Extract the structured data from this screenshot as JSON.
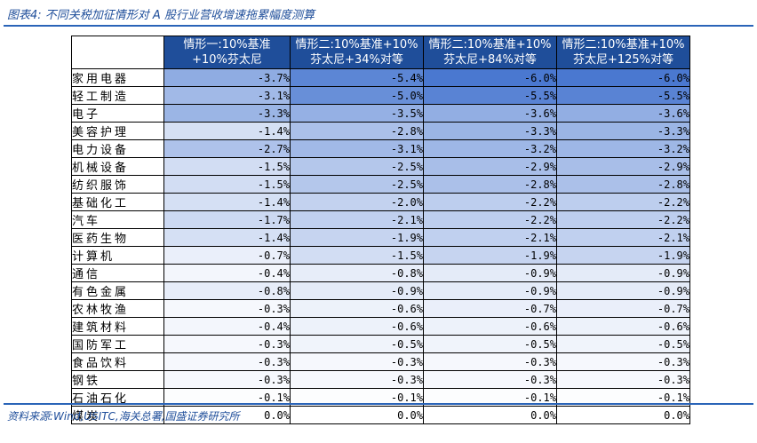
{
  "caption": "图表4:  不同关税加征情形对 A 股行业营收增速拖累幅度测算",
  "source": "资料来源:Wind,USITC,海关总署,国盛证券研究所",
  "columns": [
    {
      "line1": "情形一:10%基准",
      "line2": "+10%芬太尼"
    },
    {
      "line1": "情形二:10%基准+10%",
      "line2": "芬太尼+34%对等"
    },
    {
      "line1": "情形二:10%基准+10%",
      "line2": "芬太尼+84%对等"
    },
    {
      "line1": "情形二:10%基准+10%",
      "line2": "芬太尼+125%对等"
    }
  ],
  "rows": [
    {
      "label": "家用电器",
      "values": [
        "-3.7%",
        "-5.4%",
        "-6.0%",
        "-6.0%"
      ]
    },
    {
      "label": "轻工制造",
      "values": [
        "-3.1%",
        "-5.0%",
        "-5.5%",
        "-5.5%"
      ]
    },
    {
      "label": "电子",
      "values": [
        "-3.3%",
        "-3.5%",
        "-3.6%",
        "-3.6%"
      ]
    },
    {
      "label": "美容护理",
      "values": [
        "-1.4%",
        "-2.8%",
        "-3.3%",
        "-3.3%"
      ]
    },
    {
      "label": "电力设备",
      "values": [
        "-2.7%",
        "-3.1%",
        "-3.2%",
        "-3.2%"
      ]
    },
    {
      "label": "机械设备",
      "values": [
        "-1.5%",
        "-2.5%",
        "-2.9%",
        "-2.9%"
      ]
    },
    {
      "label": "纺织服饰",
      "values": [
        "-1.5%",
        "-2.5%",
        "-2.8%",
        "-2.8%"
      ]
    },
    {
      "label": "基础化工",
      "values": [
        "-1.4%",
        "-2.0%",
        "-2.2%",
        "-2.2%"
      ]
    },
    {
      "label": "汽车",
      "values": [
        "-1.7%",
        "-2.1%",
        "-2.2%",
        "-2.2%"
      ]
    },
    {
      "label": "医药生物",
      "values": [
        "-1.4%",
        "-1.9%",
        "-2.1%",
        "-2.1%"
      ]
    },
    {
      "label": "计算机",
      "values": [
        "-0.7%",
        "-1.5%",
        "-1.9%",
        "-1.9%"
      ]
    },
    {
      "label": "通信",
      "values": [
        "-0.4%",
        "-0.8%",
        "-0.9%",
        "-0.9%"
      ]
    },
    {
      "label": "有色金属",
      "values": [
        "-0.8%",
        "-0.9%",
        "-0.9%",
        "-0.9%"
      ]
    },
    {
      "label": "农林牧渔",
      "values": [
        "-0.3%",
        "-0.6%",
        "-0.7%",
        "-0.7%"
      ]
    },
    {
      "label": "建筑材料",
      "values": [
        "-0.4%",
        "-0.6%",
        "-0.6%",
        "-0.6%"
      ]
    },
    {
      "label": "国防军工",
      "values": [
        "-0.3%",
        "-0.5%",
        "-0.5%",
        "-0.5%"
      ]
    },
    {
      "label": "食品饮料",
      "values": [
        "-0.3%",
        "-0.3%",
        "-0.3%",
        "-0.3%"
      ]
    },
    {
      "label": "钢铁",
      "values": [
        "-0.3%",
        "-0.3%",
        "-0.3%",
        "-0.3%"
      ]
    },
    {
      "label": "石油石化",
      "values": [
        "-0.1%",
        "-0.1%",
        "-0.1%",
        "-0.1%"
      ]
    },
    {
      "label": "煤炭",
      "values": [
        "0.0%",
        "0.0%",
        "0.0%",
        "0.0%"
      ]
    }
  ],
  "colors": {
    "header_bg": "#1f4e9a",
    "rule": "#2a64b8",
    "scale_dark": "#4a78d0",
    "scale_light": "#ffffff"
  }
}
